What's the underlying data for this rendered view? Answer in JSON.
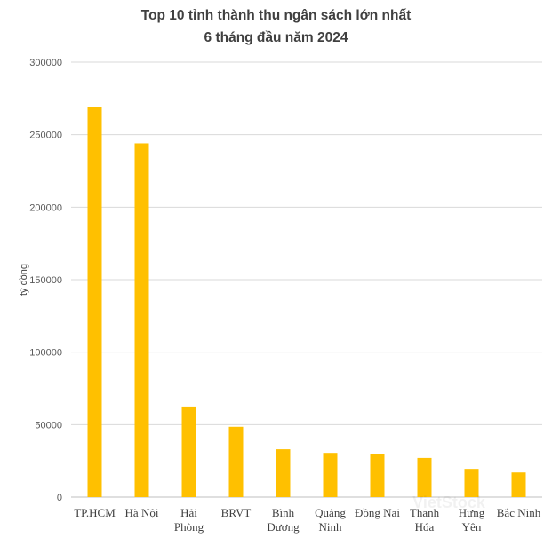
{
  "chart_data": {
    "type": "bar",
    "title_lines": [
      "Top 10 tỉnh thành thu ngân sách lớn nhất",
      "6 tháng đầu năm 2024"
    ],
    "ylabel": "tỷ đồng",
    "xlabel": "",
    "categories": [
      [
        "TP.HCM"
      ],
      [
        "Hà Nội"
      ],
      [
        "Hải",
        "Phòng"
      ],
      [
        "BRVT"
      ],
      [
        "Bình",
        "Dương"
      ],
      [
        "Quảng",
        "Ninh"
      ],
      [
        "Đồng Nai"
      ],
      [
        "Thanh",
        "Hóa"
      ],
      [
        "Hưng",
        "Yên"
      ],
      [
        "Bắc Ninh"
      ]
    ],
    "values": [
      269000,
      244000,
      62500,
      48500,
      33000,
      30500,
      30000,
      27000,
      19500,
      17000
    ],
    "ylim": [
      0,
      300000
    ],
    "yticks": [
      "0",
      "50000",
      "100000",
      "150000",
      "200000",
      "250000",
      "300000"
    ],
    "grid": true,
    "legend": "none",
    "colors": {
      "bar": "#FFC000",
      "grid": "#d9d9d9",
      "axis": "#bfbfbf"
    }
  },
  "watermark": "VietStock"
}
